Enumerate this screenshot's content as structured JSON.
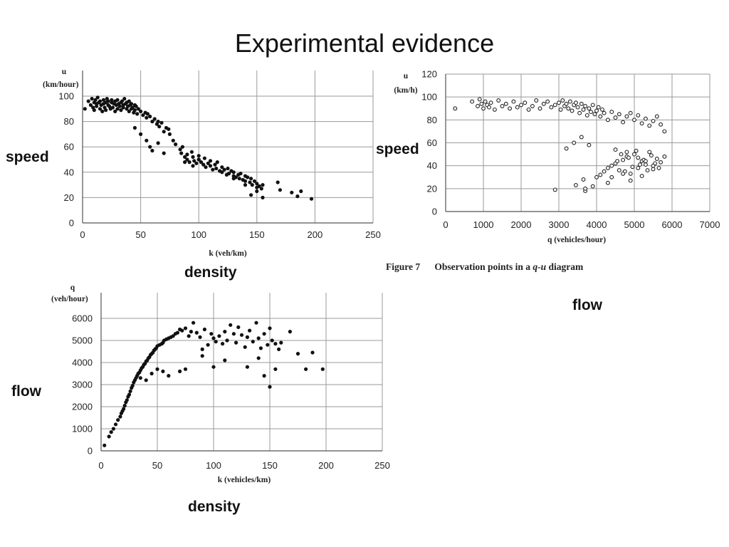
{
  "title": "Experimental evidence",
  "labels": {
    "speed_left": "speed",
    "density_top": "density",
    "speed_right": "speed",
    "flow_right": "flow",
    "flow_left": "flow",
    "density_bottom": "density"
  },
  "caption": {
    "figure": "Figure 7",
    "text": "Observation points in a ",
    "q": "q",
    "dash": "-",
    "u": "u",
    "end": " diagram"
  },
  "chart_data": [
    {
      "id": "speed-density",
      "type": "scatter",
      "title": "",
      "ylabel_line1": "u",
      "ylabel_line2": "(km/hour)",
      "xlabel": "k (veh/km)",
      "xlim": [
        0,
        250
      ],
      "ylim": [
        0,
        100
      ],
      "xticks": [
        "0",
        "50",
        "100",
        "150",
        "200",
        "250"
      ],
      "yticks": [
        "0",
        "20",
        "40",
        "60",
        "80",
        "100"
      ],
      "grid": true,
      "point_style": "filled",
      "x": [
        2,
        5,
        7,
        8,
        9,
        10,
        10,
        11,
        12,
        12,
        13,
        14,
        15,
        15,
        16,
        17,
        18,
        18,
        19,
        20,
        20,
        21,
        22,
        22,
        23,
        24,
        25,
        25,
        26,
        27,
        28,
        28,
        29,
        30,
        30,
        31,
        32,
        33,
        33,
        34,
        35,
        35,
        36,
        37,
        38,
        38,
        39,
        40,
        40,
        41,
        42,
        42,
        43,
        44,
        45,
        45,
        46,
        47,
        48,
        50,
        52,
        54,
        55,
        56,
        58,
        60,
        62,
        64,
        65,
        66,
        68,
        70,
        72,
        74,
        75,
        78,
        80,
        84,
        85,
        86,
        88,
        90,
        90,
        92,
        94,
        95,
        96,
        98,
        100,
        100,
        102,
        104,
        105,
        106,
        108,
        110,
        110,
        112,
        114,
        115,
        116,
        118,
        120,
        120,
        122,
        124,
        125,
        126,
        128,
        130,
        130,
        132,
        134,
        135,
        136,
        138,
        140,
        140,
        142,
        144,
        145,
        146,
        148,
        150,
        150,
        152,
        154,
        155,
        168,
        170,
        180,
        185,
        188,
        197,
        45,
        50,
        55,
        58,
        60,
        65,
        70,
        88,
        95,
        100,
        130,
        140,
        145,
        150,
        155
      ],
      "y": [
        90,
        96,
        93,
        98,
        91,
        95,
        89,
        97,
        94,
        92,
        99,
        95,
        90,
        96,
        93,
        88,
        97,
        94,
        91,
        95,
        89,
        98,
        93,
        96,
        92,
        90,
        95,
        97,
        91,
        94,
        88,
        96,
        93,
        90,
        97,
        94,
        92,
        95,
        89,
        96,
        93,
        91,
        98,
        94,
        90,
        95,
        92,
        88,
        96,
        93,
        90,
        94,
        91,
        87,
        93,
        89,
        92,
        86,
        90,
        88,
        85,
        87,
        83,
        86,
        84,
        80,
        82,
        78,
        80,
        76,
        79,
        72,
        75,
        74,
        70,
        65,
        62,
        58,
        55,
        60,
        52,
        54,
        50,
        48,
        56,
        52,
        49,
        47,
        53,
        50,
        48,
        46,
        51,
        44,
        47,
        45,
        49,
        42,
        46,
        43,
        48,
        41,
        44,
        40,
        42,
        38,
        43,
        39,
        41,
        37,
        40,
        36,
        38,
        35,
        39,
        34,
        37,
        33,
        36,
        32,
        35,
        30,
        33,
        31,
        28,
        29,
        27,
        30,
        32,
        26,
        24,
        21,
        25,
        19,
        75,
        70,
        65,
        60,
        57,
        63,
        55,
        48,
        45,
        50,
        35,
        30,
        22,
        25,
        20
      ]
    },
    {
      "id": "speed-flow",
      "type": "scatter",
      "title": "",
      "ylabel_line1": "u",
      "ylabel_line2": "(km/h)",
      "xlabel": "q (vehicles/hour)",
      "xlim": [
        0,
        7000
      ],
      "ylim": [
        0,
        120
      ],
      "xticks": [
        "0",
        "1000",
        "2000",
        "3000",
        "4000",
        "5000",
        "6000",
        "7000"
      ],
      "yticks": [
        "0",
        "20",
        "40",
        "60",
        "80",
        "100",
        "120"
      ],
      "grid": true,
      "point_style": "open",
      "x": [
        250,
        700,
        850,
        900,
        950,
        1000,
        1050,
        1100,
        1150,
        1200,
        1300,
        1400,
        1500,
        1600,
        1700,
        1800,
        1900,
        2000,
        2100,
        2200,
        2300,
        2400,
        2500,
        2600,
        2700,
        2800,
        2900,
        3000,
        3050,
        3100,
        3150,
        3200,
        3250,
        3300,
        3350,
        3400,
        3450,
        3500,
        3550,
        3600,
        3650,
        3700,
        3750,
        3800,
        3850,
        3900,
        3950,
        4000,
        4050,
        4100,
        4150,
        4200,
        4300,
        4400,
        4500,
        4600,
        4700,
        4800,
        4900,
        5000,
        5100,
        5200,
        5300,
        5400,
        5500,
        5600,
        5700,
        5800,
        3200,
        3400,
        3600,
        3800,
        3700,
        3900,
        2900,
        3450,
        3650,
        3700,
        4000,
        4100,
        4200,
        4300,
        4400,
        4500,
        4600,
        4700,
        4800,
        4900,
        5000,
        5100,
        5200,
        5300,
        5400,
        5500,
        5600,
        5700,
        5800,
        4400,
        4550,
        4650,
        4750,
        4850,
        4950,
        5050,
        5150,
        5250,
        5350,
        5450,
        5550,
        5650,
        4500,
        4700,
        4900,
        5100,
        5300,
        5500,
        4300,
        4800,
        5200
      ],
      "y": [
        90,
        96,
        92,
        98,
        94,
        90,
        96,
        93,
        91,
        95,
        89,
        97,
        92,
        94,
        90,
        96,
        91,
        93,
        95,
        89,
        92,
        97,
        90,
        94,
        96,
        91,
        93,
        95,
        89,
        97,
        92,
        94,
        90,
        96,
        88,
        93,
        95,
        91,
        86,
        94,
        89,
        92,
        84,
        90,
        87,
        93,
        85,
        88,
        91,
        83,
        89,
        86,
        80,
        87,
        82,
        85,
        78,
        83,
        86,
        80,
        84,
        77,
        81,
        75,
        79,
        83,
        76,
        70,
        55,
        60,
        65,
        58,
        18,
        22,
        19,
        23,
        28,
        20,
        30,
        32,
        35,
        38,
        40,
        42,
        36,
        45,
        48,
        33,
        50,
        38,
        44,
        41,
        52,
        37,
        46,
        43,
        48,
        30,
        44,
        50,
        35,
        47,
        39,
        53,
        41,
        45,
        36,
        49,
        42,
        38,
        54,
        33,
        27,
        47,
        44,
        40,
        25,
        52,
        31
      ]
    },
    {
      "id": "flow-density",
      "type": "scatter",
      "title": "",
      "ylabel_line1": "q",
      "ylabel_line2": "(veh/hour)",
      "xlabel": "k (vehicles/km)",
      "xlim": [
        0,
        250
      ],
      "ylim": [
        0,
        6000
      ],
      "xticks": [
        "0",
        "50",
        "100",
        "150",
        "200",
        "250"
      ],
      "yticks": [
        "0",
        "1000",
        "2000",
        "3000",
        "4000",
        "5000",
        "6000"
      ],
      "grid": true,
      "point_style": "filled",
      "x": [
        3,
        7,
        9,
        11,
        13,
        15,
        17,
        18,
        19,
        20,
        21,
        22,
        23,
        24,
        25,
        26,
        27,
        28,
        29,
        30,
        31,
        32,
        33,
        34,
        35,
        36,
        37,
        38,
        39,
        40,
        41,
        42,
        43,
        44,
        45,
        46,
        47,
        48,
        49,
        50,
        52,
        54,
        55,
        56,
        58,
        60,
        62,
        64,
        66,
        68,
        70,
        72,
        75,
        78,
        80,
        82,
        85,
        88,
        90,
        92,
        95,
        98,
        100,
        102,
        105,
        108,
        110,
        112,
        115,
        118,
        120,
        122,
        125,
        128,
        130,
        132,
        135,
        138,
        140,
        142,
        145,
        148,
        150,
        152,
        155,
        158,
        160,
        168,
        175,
        182,
        188,
        197,
        35,
        40,
        45,
        50,
        55,
        60,
        70,
        75,
        90,
        100,
        110,
        130,
        140,
        145,
        150,
        155
      ],
      "y": [
        250,
        650,
        850,
        1000,
        1200,
        1400,
        1550,
        1700,
        1800,
        1900,
        2050,
        2200,
        2300,
        2450,
        2550,
        2700,
        2850,
        2950,
        3100,
        3200,
        3300,
        3400,
        3500,
        3550,
        3650,
        3750,
        3800,
        3900,
        3950,
        4050,
        4100,
        4200,
        4250,
        4350,
        4400,
        4450,
        4550,
        4600,
        4650,
        4750,
        4800,
        4850,
        4900,
        5000,
        5050,
        5100,
        5150,
        5200,
        5300,
        5350,
        5500,
        5450,
        5550,
        5200,
        5400,
        5800,
        5350,
        5150,
        4600,
        5500,
        4800,
        5300,
        5100,
        4950,
        5200,
        4850,
        5400,
        5000,
        5700,
        5300,
        4900,
        5600,
        5250,
        4700,
        5150,
        5450,
        4950,
        5800,
        5100,
        4650,
        5300,
        4800,
        5550,
        5000,
        4850,
        4600,
        4900,
        5400,
        4400,
        3700,
        4450,
        3700,
        3300,
        3200,
        3500,
        3700,
        3600,
        3400,
        3600,
        3700,
        4300,
        3800,
        4100,
        3800,
        4200,
        3400,
        2900,
        3700
      ]
    }
  ]
}
